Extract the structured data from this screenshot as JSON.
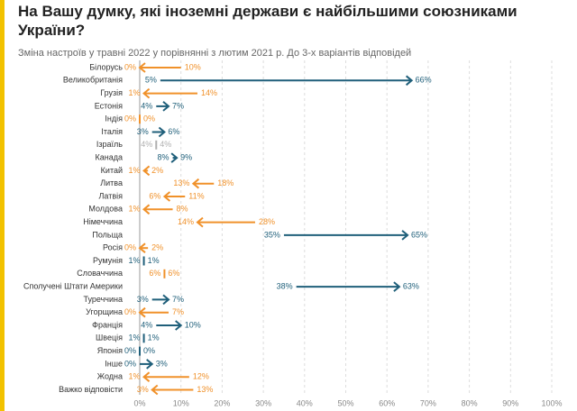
{
  "chart_data": {
    "type": "arrow",
    "title": "На Вашу думку, які іноземні держави є найбільшими союзниками України?",
    "subtitle": "Зміна настроїв у травні 2022 у порівнянні з лютим 2021 р. До 3-х варіантів відповідей",
    "categories": [
      "Білорусь",
      "Великобританія",
      "Грузія",
      "Естонія",
      "Індія",
      "Італія",
      "Ізраїль",
      "Канада",
      "Китай",
      "Литва",
      "Латвія",
      "Молдова",
      "Німеччина",
      "Польща",
      "Росія",
      "Румунія",
      "Словаччина",
      "Сполучені Штати Америки",
      "Туреччина",
      "Угорщина",
      "Франція",
      "Швеція",
      "Японія",
      "Інше",
      "Жодна",
      "Важко відповісти"
    ],
    "colors": [
      "#f0912a",
      "#1f5f7a",
      "#f0912a",
      "#1f5f7a",
      "#f0912a",
      "#1f5f7a",
      "#b0b0b0",
      "#1f5f7a",
      "#f0912a",
      "#f0912a",
      "#f0912a",
      "#f0912a",
      "#f0912a",
      "#1f5f7a",
      "#f0912a",
      "#1f5f7a",
      "#f0912a",
      "#1f5f7a",
      "#1f5f7a",
      "#f0912a",
      "#1f5f7a",
      "#1f5f7a",
      "#1f5f7a",
      "#1f5f7a",
      "#f0912a",
      "#f0912a"
    ],
    "series": [
      {
        "values": [
          10,
          5,
          14,
          4,
          0,
          3,
          4,
          8,
          2,
          18,
          11,
          8,
          28,
          35,
          2,
          1,
          6,
          38,
          3,
          7,
          4,
          1,
          0,
          0,
          12,
          13
        ],
        "value_labels": [
          "10%",
          "5%",
          "14%",
          "4%",
          "0%",
          "3%",
          "4%",
          "8%",
          "2%",
          "18%",
          "11%",
          "8%",
          "28%",
          "35%",
          "2%",
          "1%",
          "6%",
          "38%",
          "3%",
          "7%",
          "4%",
          "1%",
          "0%",
          "0%",
          "12%",
          "13%"
        ]
      },
      {
        "values": [
          0,
          66,
          1,
          7,
          0,
          6,
          4,
          9,
          1,
          13,
          6,
          1,
          14,
          65,
          0,
          1,
          6,
          63,
          7,
          0,
          10,
          1,
          0,
          3,
          1,
          3
        ],
        "value_labels": [
          "0%",
          "66%",
          "1%",
          "7%",
          "0%",
          "6%",
          "4%",
          "9%",
          "1%",
          "13%",
          "6%",
          "1%",
          "14%",
          "65%",
          "0%",
          "1%",
          "6%",
          "63%",
          "7%",
          "0%",
          "10%",
          "1%",
          "0%",
          "3%",
          "1%",
          "3%"
        ]
      }
    ],
    "xlim": [
      0,
      100
    ],
    "xticks": [
      {
        "value": 0,
        "label": "0%"
      },
      {
        "value": 10,
        "label": "10%"
      },
      {
        "value": 20,
        "label": "20%"
      },
      {
        "value": 30,
        "label": "30%"
      },
      {
        "value": 40,
        "label": "40%"
      },
      {
        "value": 50,
        "label": "50%"
      },
      {
        "value": 60,
        "label": "60%"
      },
      {
        "value": 70,
        "label": "70%"
      },
      {
        "value": 80,
        "label": "80%"
      },
      {
        "value": 90,
        "label": "90%"
      },
      {
        "value": 100,
        "label": "100%"
      }
    ],
    "grid": true
  }
}
